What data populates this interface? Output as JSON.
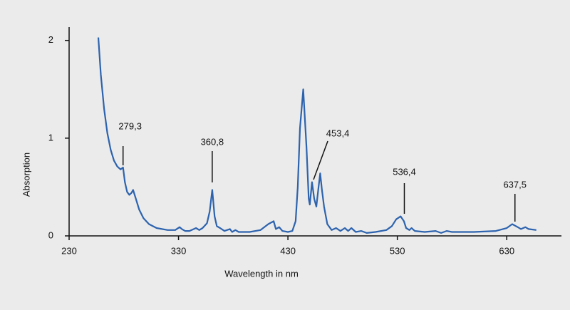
{
  "chart_data": {
    "type": "line",
    "x_label": "Wavelength in nm",
    "y_label": "Absorption",
    "color": "#2d63ae",
    "x": [
      256.7,
      259,
      262,
      265,
      268,
      271,
      274,
      277,
      279.3,
      281,
      283,
      285,
      287,
      288.5,
      291,
      294,
      298,
      303,
      310,
      320,
      327,
      331,
      333,
      336,
      340,
      346,
      349,
      352,
      356,
      358.5,
      360.8,
      363,
      365,
      368,
      372,
      377,
      379,
      382,
      385,
      395,
      405,
      412,
      417,
      419,
      422,
      425,
      430,
      434,
      437,
      439,
      441,
      444,
      447,
      449,
      450,
      452,
      454,
      456,
      458,
      459.5,
      461,
      463,
      466,
      470,
      474,
      478,
      482,
      485,
      488,
      492,
      497,
      502,
      510,
      520,
      525,
      529,
      533,
      536,
      538,
      541,
      543,
      546,
      555,
      565,
      570,
      575,
      580,
      600,
      620,
      630,
      635,
      640,
      643,
      647,
      650,
      657
    ],
    "values": [
      2.03,
      1.65,
      1.3,
      1.05,
      0.88,
      0.77,
      0.71,
      0.68,
      0.7,
      0.55,
      0.45,
      0.42,
      0.44,
      0.47,
      0.38,
      0.27,
      0.18,
      0.12,
      0.08,
      0.06,
      0.06,
      0.09,
      0.07,
      0.05,
      0.05,
      0.08,
      0.06,
      0.08,
      0.13,
      0.25,
      0.47,
      0.2,
      0.1,
      0.08,
      0.05,
      0.07,
      0.04,
      0.06,
      0.04,
      0.04,
      0.06,
      0.12,
      0.15,
      0.07,
      0.09,
      0.05,
      0.04,
      0.05,
      0.15,
      0.5,
      1.1,
      1.5,
      0.9,
      0.38,
      0.32,
      0.55,
      0.38,
      0.3,
      0.5,
      0.64,
      0.48,
      0.3,
      0.12,
      0.06,
      0.08,
      0.05,
      0.08,
      0.05,
      0.08,
      0.04,
      0.05,
      0.03,
      0.04,
      0.06,
      0.1,
      0.17,
      0.2,
      0.15,
      0.08,
      0.06,
      0.08,
      0.05,
      0.04,
      0.05,
      0.03,
      0.05,
      0.04,
      0.04,
      0.05,
      0.08,
      0.12,
      0.09,
      0.07,
      0.09,
      0.07,
      0.06
    ],
    "xlim": [
      230,
      680
    ],
    "ylim": [
      0,
      2.1
    ],
    "xticks": [
      230,
      330,
      430,
      530,
      630
    ],
    "yticks": [
      0,
      1,
      2
    ],
    "annotations": [
      {
        "x": 279.3,
        "label": "279,3"
      },
      {
        "x": 360.8,
        "label": "360,8"
      },
      {
        "x": 453.4,
        "label": "453,4"
      },
      {
        "x": 536.4,
        "label": "536,4"
      },
      {
        "x": 637.5,
        "label": "637,5"
      }
    ]
  }
}
